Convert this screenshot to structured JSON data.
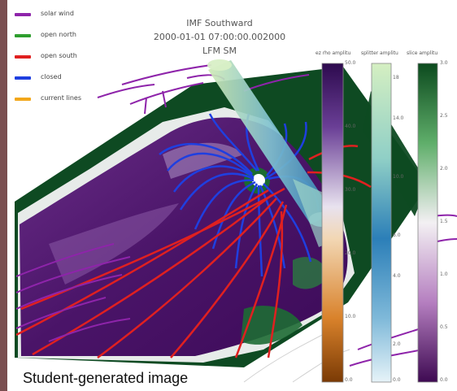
{
  "title": {
    "line1": "IMF Southward",
    "line2": "2000-01-01 07:00:00.002000",
    "line3": "LFM SM"
  },
  "legend": [
    {
      "label": "solar wind",
      "color": "#8e24aa"
    },
    {
      "label": "open north",
      "color": "#2e9e2e"
    },
    {
      "label": "open south",
      "color": "#e02020"
    },
    {
      "label": "closed",
      "color": "#1f3fe0"
    },
    {
      "label": "current lines",
      "color": "#f2a71b"
    }
  ],
  "colorbars": [
    {
      "title": "ez rho amplitu",
      "ticks": [
        "50.0",
        "40.0",
        "30.0",
        "20.0",
        "10.0",
        "0.0"
      ]
    },
    {
      "title": "splitter amplitu",
      "ticks": [
        "18",
        "14.0",
        "10.0",
        "6.0",
        "4.0",
        "2.0",
        "0.0"
      ]
    },
    {
      "title": "slice amplitu",
      "ticks": [
        "3.0",
        "2.5",
        "2.0",
        "1.5",
        "1.0",
        "0.5",
        "0.0"
      ]
    }
  ],
  "caption": "Student-generated image",
  "colors": {
    "green_dark": "#0e4a22",
    "purple_dark": "#3c0a58",
    "frame_left": "#7a4e50"
  }
}
